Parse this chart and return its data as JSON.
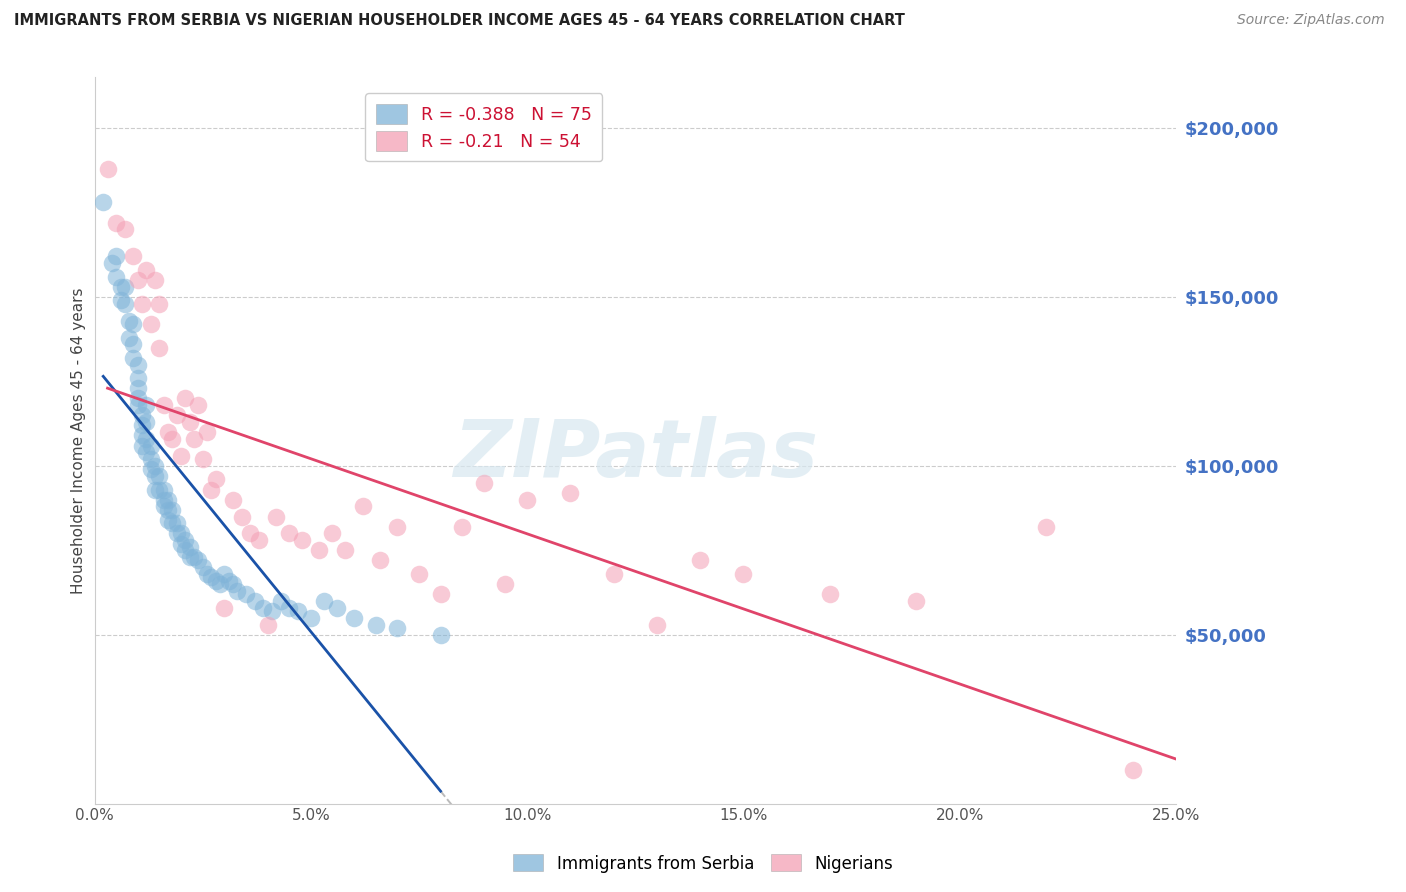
{
  "title": "IMMIGRANTS FROM SERBIA VS NIGERIAN HOUSEHOLDER INCOME AGES 45 - 64 YEARS CORRELATION CHART",
  "source": "Source: ZipAtlas.com",
  "ylabel": "Householder Income Ages 45 - 64 years",
  "y_tick_labels": [
    "$200,000",
    "$150,000",
    "$100,000",
    "$50,000"
  ],
  "y_tick_values": [
    200000,
    150000,
    100000,
    50000
  ],
  "y_label_color": "#4472c4",
  "x_min": 0.0,
  "x_max": 0.25,
  "y_min": 0,
  "y_max": 215000,
  "serbia_color": "#7fb3d8",
  "nigeria_color": "#f4a0b5",
  "serbia_R": -0.388,
  "serbia_N": 75,
  "nigeria_R": -0.21,
  "nigeria_N": 54,
  "serbia_line_color": "#1a52a8",
  "nigeria_line_color": "#e0446a",
  "watermark": "ZIPatlas",
  "serbia_data_x": [
    0.002,
    0.004,
    0.005,
    0.005,
    0.006,
    0.006,
    0.007,
    0.007,
    0.008,
    0.008,
    0.009,
    0.009,
    0.009,
    0.01,
    0.01,
    0.01,
    0.01,
    0.01,
    0.011,
    0.011,
    0.011,
    0.011,
    0.012,
    0.012,
    0.012,
    0.012,
    0.013,
    0.013,
    0.013,
    0.014,
    0.014,
    0.014,
    0.015,
    0.015,
    0.016,
    0.016,
    0.016,
    0.017,
    0.017,
    0.017,
    0.018,
    0.018,
    0.019,
    0.019,
    0.02,
    0.02,
    0.021,
    0.021,
    0.022,
    0.022,
    0.023,
    0.024,
    0.025,
    0.026,
    0.027,
    0.028,
    0.029,
    0.03,
    0.031,
    0.032,
    0.033,
    0.035,
    0.037,
    0.039,
    0.041,
    0.043,
    0.045,
    0.047,
    0.05,
    0.053,
    0.056,
    0.06,
    0.065,
    0.07,
    0.08
  ],
  "serbia_data_y": [
    178000,
    160000,
    162000,
    156000,
    153000,
    149000,
    153000,
    148000,
    143000,
    138000,
    142000,
    136000,
    132000,
    130000,
    126000,
    123000,
    120000,
    118000,
    115000,
    112000,
    109000,
    106000,
    118000,
    113000,
    108000,
    104000,
    106000,
    102000,
    99000,
    100000,
    97000,
    93000,
    97000,
    93000,
    93000,
    90000,
    88000,
    90000,
    87000,
    84000,
    87000,
    83000,
    83000,
    80000,
    80000,
    77000,
    78000,
    75000,
    76000,
    73000,
    73000,
    72000,
    70000,
    68000,
    67000,
    66000,
    65000,
    68000,
    66000,
    65000,
    63000,
    62000,
    60000,
    58000,
    57000,
    60000,
    58000,
    57000,
    55000,
    60000,
    58000,
    55000,
    53000,
    52000,
    50000
  ],
  "nigeria_data_x": [
    0.003,
    0.005,
    0.007,
    0.009,
    0.01,
    0.011,
    0.012,
    0.013,
    0.014,
    0.015,
    0.015,
    0.016,
    0.017,
    0.018,
    0.019,
    0.02,
    0.021,
    0.022,
    0.023,
    0.024,
    0.025,
    0.026,
    0.027,
    0.028,
    0.03,
    0.032,
    0.034,
    0.036,
    0.038,
    0.04,
    0.042,
    0.045,
    0.048,
    0.052,
    0.055,
    0.058,
    0.062,
    0.066,
    0.07,
    0.075,
    0.08,
    0.085,
    0.09,
    0.095,
    0.1,
    0.11,
    0.12,
    0.13,
    0.14,
    0.15,
    0.17,
    0.19,
    0.22,
    0.24
  ],
  "nigeria_data_y": [
    188000,
    172000,
    170000,
    162000,
    155000,
    148000,
    158000,
    142000,
    155000,
    135000,
    148000,
    118000,
    110000,
    108000,
    115000,
    103000,
    120000,
    113000,
    108000,
    118000,
    102000,
    110000,
    93000,
    96000,
    58000,
    90000,
    85000,
    80000,
    78000,
    53000,
    85000,
    80000,
    78000,
    75000,
    80000,
    75000,
    88000,
    72000,
    82000,
    68000,
    62000,
    82000,
    95000,
    65000,
    90000,
    92000,
    68000,
    53000,
    72000,
    68000,
    62000,
    60000,
    82000,
    10000
  ]
}
